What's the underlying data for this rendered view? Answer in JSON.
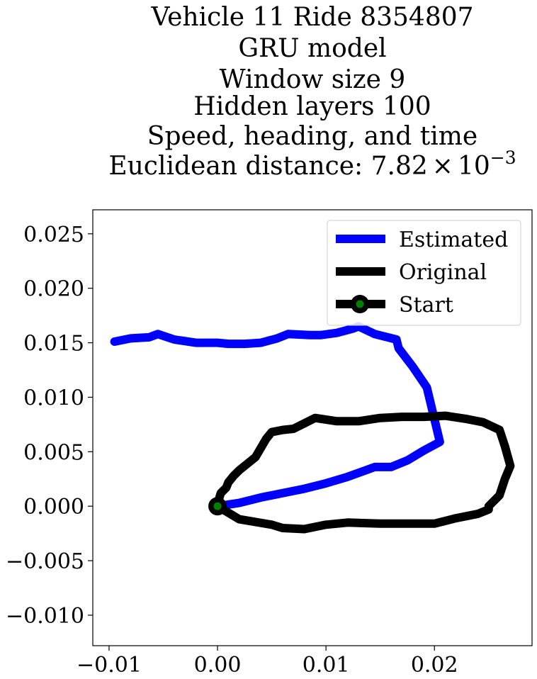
{
  "chart_data": {
    "type": "line",
    "title_lines": [
      "Vehicle 11 Ride 8354807",
      "GRU model",
      "Window size 9",
      "Hidden layers 100",
      "Speed, heading, and time"
    ],
    "title_distance_prefix": "Euclidean distance: ",
    "title_distance_mantissa": "7.82",
    "title_distance_times": "×",
    "title_distance_base": "10",
    "title_distance_exponent": "−3",
    "xlabel": "",
    "ylabel": "",
    "xlim": [
      -0.0115,
      0.029
    ],
    "ylim": [
      -0.0128,
      0.0272
    ],
    "x_ticks": [
      -0.01,
      0.0,
      0.01,
      0.02
    ],
    "x_tick_labels": [
      "−0.01",
      "0.00",
      "0.01",
      "0.02"
    ],
    "y_ticks": [
      -0.01,
      -0.005,
      0.0,
      0.005,
      0.01,
      0.015,
      0.02,
      0.025
    ],
    "y_tick_labels": [
      "−0.010",
      "−0.005",
      "0.000",
      "0.005",
      "0.010",
      "0.015",
      "0.020",
      "0.025"
    ],
    "grid": false,
    "legend_position": "top-right",
    "series": [
      {
        "name": "Estimated",
        "color": "#0000ff",
        "x": [
          0.0,
          0.002,
          0.004,
          0.006,
          0.008,
          0.01,
          0.012,
          0.0145,
          0.016,
          0.0175,
          0.019,
          0.0205,
          0.0193,
          0.018,
          0.0167,
          0.0165,
          0.0145,
          0.013,
          0.0125,
          0.011,
          0.0095,
          0.0085,
          0.0065,
          0.0055,
          0.004,
          0.0025,
          0.001,
          0.0,
          -0.002,
          -0.004,
          -0.0055,
          -0.0063,
          -0.008,
          -0.0095
        ],
        "y": [
          0.0,
          0.0003,
          0.0008,
          0.0012,
          0.0016,
          0.0021,
          0.0027,
          0.0036,
          0.0036,
          0.0042,
          0.0051,
          0.0059,
          0.0109,
          0.0128,
          0.0145,
          0.0153,
          0.0158,
          0.0165,
          0.0163,
          0.0159,
          0.0157,
          0.0157,
          0.0158,
          0.0154,
          0.015,
          0.0149,
          0.0149,
          0.015,
          0.015,
          0.0153,
          0.0158,
          0.0155,
          0.0154,
          0.0151
        ]
      },
      {
        "name": "Original",
        "color": "#000000",
        "x": [
          0.0,
          0.002,
          0.005,
          0.006,
          0.008,
          0.01,
          0.012,
          0.015,
          0.017,
          0.02,
          0.022,
          0.024,
          0.025,
          0.025,
          0.026,
          0.0265,
          0.027,
          0.0265,
          0.026,
          0.0245,
          0.023,
          0.021,
          0.019,
          0.017,
          0.015,
          0.013,
          0.011,
          0.009,
          0.008,
          0.007,
          0.006,
          0.005,
          0.0045,
          0.0035,
          0.002,
          0.0015,
          0.001,
          0.0008,
          0.0003,
          0.0
        ],
        "y": [
          0.0,
          -0.0012,
          -0.0017,
          -0.002,
          -0.0021,
          -0.0017,
          -0.0015,
          -0.0016,
          -0.0016,
          -0.0016,
          -0.0011,
          -0.0007,
          -0.0003,
          0.0,
          0.001,
          0.0025,
          0.0037,
          0.0055,
          0.007,
          0.0077,
          0.008,
          0.0083,
          0.0082,
          0.0082,
          0.0081,
          0.0078,
          0.0078,
          0.0081,
          0.0076,
          0.0071,
          0.007,
          0.0068,
          0.0062,
          0.0045,
          0.0033,
          0.0028,
          0.0022,
          0.0017,
          0.0012,
          0.0002
        ]
      }
    ],
    "start_marker": {
      "name": "Start",
      "x": 0.0,
      "y": 0.0,
      "outer_color": "#000000",
      "inner_color": "#008000"
    },
    "legend_entries": [
      "Estimated",
      "Original",
      "Start"
    ]
  }
}
